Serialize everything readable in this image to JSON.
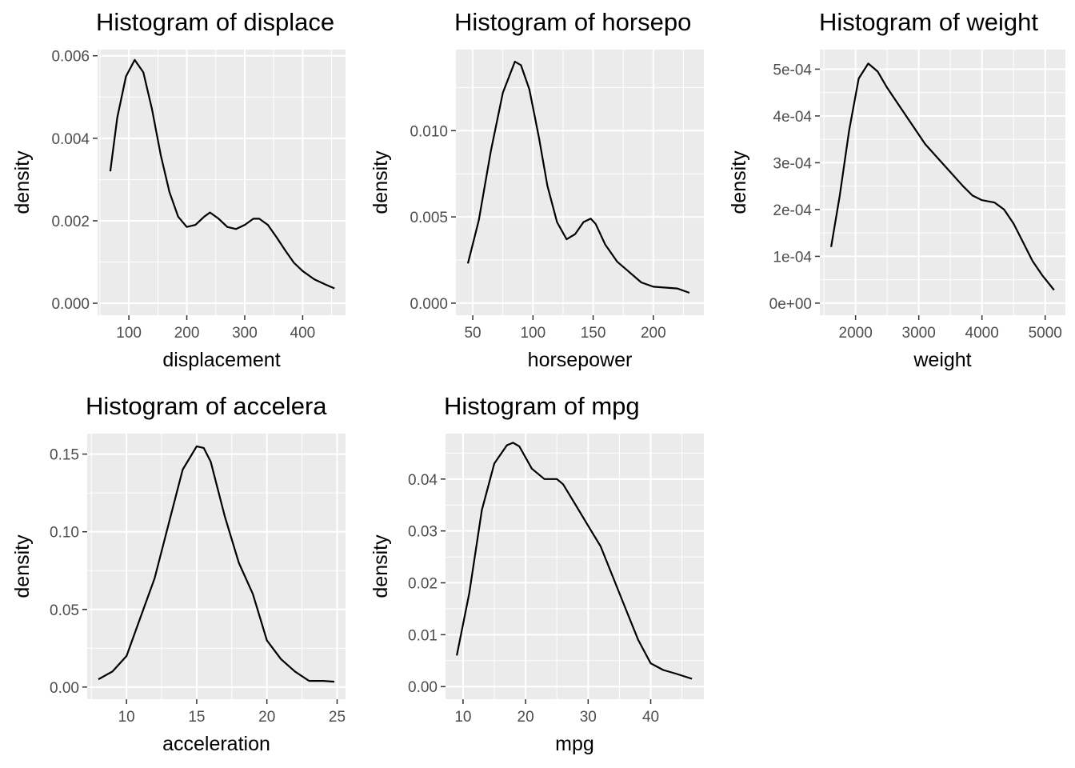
{
  "chart_data": [
    {
      "type": "line",
      "title": "Histogram of displace",
      "xlabel": "displacement",
      "ylabel": "density",
      "xlim": [
        46,
        474
      ],
      "ylim": [
        -0.00029,
        0.00615
      ],
      "xticks": [
        100,
        200,
        300,
        400
      ],
      "xtick_labels": [
        "100",
        "200",
        "300",
        "400"
      ],
      "yticks": [
        0,
        0.002,
        0.004,
        0.006
      ],
      "ytick_labels": [
        "0.000",
        "0.002",
        "0.004",
        "0.006"
      ],
      "grid": true,
      "series": [
        {
          "x": [
            68,
            80,
            95,
            110,
            125,
            140,
            155,
            170,
            185,
            200,
            215,
            230,
            240,
            255,
            270,
            285,
            300,
            315,
            325,
            340,
            355,
            370,
            385,
            400,
            420,
            440,
            455
          ],
          "y": [
            0.0032,
            0.0045,
            0.0055,
            0.0059,
            0.0056,
            0.0047,
            0.0036,
            0.0027,
            0.0021,
            0.00185,
            0.0019,
            0.0021,
            0.0022,
            0.00205,
            0.00185,
            0.0018,
            0.0019,
            0.00205,
            0.00205,
            0.0019,
            0.0016,
            0.00128,
            0.00098,
            0.00078,
            0.00058,
            0.00045,
            0.00036
          ]
        }
      ]
    },
    {
      "type": "line",
      "title": "Histogram of horsepo",
      "xlabel": "horsepower",
      "ylabel": "density",
      "xlim": [
        36,
        242
      ],
      "ylim": [
        -0.0007,
        0.0147
      ],
      "xticks": [
        50,
        100,
        150,
        200
      ],
      "xtick_labels": [
        "50",
        "100",
        "150",
        "200"
      ],
      "yticks": [
        0,
        0.005,
        0.01
      ],
      "ytick_labels": [
        "0.000",
        "0.005",
        "0.010"
      ],
      "grid": true,
      "series": [
        {
          "x": [
            46,
            55,
            65,
            75,
            85,
            90,
            97,
            105,
            112,
            120,
            128,
            135,
            142,
            148,
            152,
            160,
            170,
            180,
            190,
            200,
            210,
            220,
            230
          ],
          "y": [
            0.0023,
            0.0048,
            0.0088,
            0.0122,
            0.014,
            0.0138,
            0.0124,
            0.0096,
            0.0068,
            0.0047,
            0.0037,
            0.004,
            0.0047,
            0.0049,
            0.0046,
            0.0034,
            0.0024,
            0.0018,
            0.0012,
            0.00095,
            0.0009,
            0.00085,
            0.0006
          ]
        }
      ]
    },
    {
      "type": "line",
      "title": "Histogram of weight",
      "xlabel": "weight",
      "ylabel": "density",
      "xlim": [
        1435,
        5320
      ],
      "ylim": [
        -2.58e-05,
        0.0005418
      ],
      "xticks": [
        2000,
        3000,
        4000,
        5000
      ],
      "xtick_labels": [
        "2000",
        "3000",
        "4000",
        "5000"
      ],
      "yticks": [
        0,
        0.0001,
        0.0002,
        0.0003,
        0.0004,
        0.0005
      ],
      "ytick_labels": [
        "0e+00",
        "1e-04",
        "2e-04",
        "3e-04",
        "4e-04",
        "5e-04"
      ],
      "grid": true,
      "series": [
        {
          "x": [
            1613,
            1750,
            1900,
            2050,
            2200,
            2350,
            2500,
            2700,
            2900,
            3100,
            3300,
            3500,
            3700,
            3850,
            4000,
            4200,
            4350,
            4500,
            4650,
            4800,
            4950,
            5140
          ],
          "y": [
            0.00012,
            0.00023,
            0.00037,
            0.00048,
            0.000512,
            0.000495,
            0.00046,
            0.00042,
            0.00038,
            0.00034,
            0.00031,
            0.00028,
            0.00025,
            0.00023,
            0.00022,
            0.000215,
            0.0002,
            0.00017,
            0.00013,
            9e-05,
            6e-05,
            2.8e-05
          ]
        }
      ]
    },
    {
      "type": "line",
      "title": "Histogram of accelera",
      "xlabel": "acceleration",
      "ylabel": "density",
      "xlim": [
        7.2,
        25.6
      ],
      "ylim": [
        -0.0078,
        0.1632
      ],
      "xticks": [
        10,
        15,
        20,
        25
      ],
      "xtick_labels": [
        "10",
        "15",
        "20",
        "25"
      ],
      "yticks": [
        0,
        0.05,
        0.1,
        0.15
      ],
      "ytick_labels": [
        "0.00",
        "0.05",
        "0.10",
        "0.15"
      ],
      "grid": true,
      "series": [
        {
          "x": [
            8,
            9,
            10,
            11,
            12,
            13,
            14,
            15,
            15.5,
            16,
            17,
            18,
            19,
            20,
            21,
            22,
            23,
            24,
            24.8
          ],
          "y": [
            0.005,
            0.01,
            0.02,
            0.045,
            0.07,
            0.105,
            0.14,
            0.155,
            0.154,
            0.145,
            0.11,
            0.08,
            0.06,
            0.03,
            0.018,
            0.01,
            0.004,
            0.004,
            0.0035
          ]
        }
      ]
    },
    {
      "type": "line",
      "title": "Histogram of mpg",
      "xlabel": "mpg",
      "ylabel": "density",
      "xlim": [
        7.2,
        48.5
      ],
      "ylim": [
        -0.00243,
        0.04876
      ],
      "xticks": [
        10,
        20,
        30,
        40
      ],
      "xtick_labels": [
        "10",
        "20",
        "30",
        "40"
      ],
      "yticks": [
        0,
        0.01,
        0.02,
        0.03,
        0.04
      ],
      "ytick_labels": [
        "0.00",
        "0.01",
        "0.02",
        "0.03",
        "0.04"
      ],
      "grid": true,
      "series": [
        {
          "x": [
            9,
            11,
            13,
            15,
            17,
            18,
            19,
            21,
            23,
            25,
            26,
            28,
            30,
            32,
            34,
            36,
            38,
            40,
            42,
            44,
            46.6
          ],
          "y": [
            0.006,
            0.018,
            0.034,
            0.043,
            0.0465,
            0.047,
            0.0463,
            0.042,
            0.04,
            0.04,
            0.039,
            0.035,
            0.031,
            0.027,
            0.021,
            0.015,
            0.009,
            0.0045,
            0.0032,
            0.0025,
            0.0015
          ]
        }
      ]
    }
  ]
}
